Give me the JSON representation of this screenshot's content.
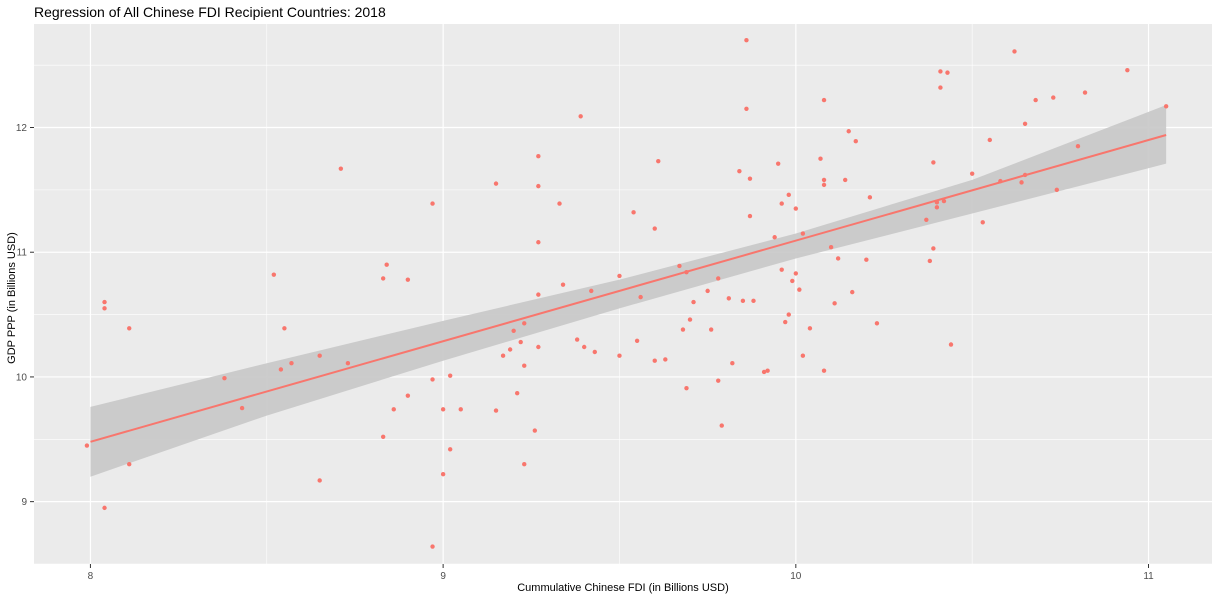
{
  "chart_data": {
    "type": "scatter",
    "title": "Regression of All Chinese FDI Recipient Countries: 2018",
    "xlabel": "Cummulative Chinese FDI (in Billions USD)",
    "ylabel": "GDP PPP (in Billions USD)",
    "xlim": [
      7.84,
      11.18
    ],
    "ylim": [
      8.5,
      12.83
    ],
    "x_ticks": [
      8,
      9,
      10,
      11
    ],
    "y_ticks": [
      9,
      10,
      11,
      12
    ],
    "x_tick_labels": [
      "8",
      "9",
      "10",
      "11"
    ],
    "y_tick_labels": [
      "9",
      "10",
      "11",
      "12"
    ],
    "grid": true,
    "colors": {
      "points": "#f8766d",
      "line": "#f8766d",
      "band": "#c8c8c8",
      "panel": "#ebebeb",
      "grid": "#ffffff"
    },
    "points": [
      {
        "x": 7.99,
        "y": 9.45
      },
      {
        "x": 8.04,
        "y": 10.6
      },
      {
        "x": 8.04,
        "y": 10.55
      },
      {
        "x": 8.04,
        "y": 8.95
      },
      {
        "x": 8.11,
        "y": 10.39
      },
      {
        "x": 8.11,
        "y": 9.3
      },
      {
        "x": 8.38,
        "y": 9.99
      },
      {
        "x": 8.43,
        "y": 9.75
      },
      {
        "x": 8.52,
        "y": 10.82
      },
      {
        "x": 8.54,
        "y": 10.06
      },
      {
        "x": 8.55,
        "y": 10.39
      },
      {
        "x": 8.57,
        "y": 10.11
      },
      {
        "x": 8.65,
        "y": 9.17
      },
      {
        "x": 8.65,
        "y": 10.17
      },
      {
        "x": 8.71,
        "y": 11.67
      },
      {
        "x": 8.73,
        "y": 10.11
      },
      {
        "x": 8.83,
        "y": 10.79
      },
      {
        "x": 8.84,
        "y": 10.9
      },
      {
        "x": 8.83,
        "y": 9.52
      },
      {
        "x": 8.86,
        "y": 9.74
      },
      {
        "x": 8.9,
        "y": 10.78
      },
      {
        "x": 8.9,
        "y": 9.85
      },
      {
        "x": 8.97,
        "y": 11.39
      },
      {
        "x": 8.97,
        "y": 9.98
      },
      {
        "x": 8.97,
        "y": 8.64
      },
      {
        "x": 9.0,
        "y": 9.74
      },
      {
        "x": 9.0,
        "y": 9.22
      },
      {
        "x": 9.02,
        "y": 10.01
      },
      {
        "x": 9.02,
        "y": 9.42
      },
      {
        "x": 9.05,
        "y": 9.74
      },
      {
        "x": 9.15,
        "y": 11.55
      },
      {
        "x": 9.15,
        "y": 9.73
      },
      {
        "x": 9.17,
        "y": 10.17
      },
      {
        "x": 9.19,
        "y": 10.22
      },
      {
        "x": 9.2,
        "y": 10.37
      },
      {
        "x": 9.21,
        "y": 9.87
      },
      {
        "x": 9.22,
        "y": 10.28
      },
      {
        "x": 9.23,
        "y": 10.43
      },
      {
        "x": 9.23,
        "y": 9.3
      },
      {
        "x": 9.23,
        "y": 10.09
      },
      {
        "x": 9.26,
        "y": 9.57
      },
      {
        "x": 9.27,
        "y": 11.77
      },
      {
        "x": 9.27,
        "y": 11.53
      },
      {
        "x": 9.27,
        "y": 11.08
      },
      {
        "x": 9.27,
        "y": 10.66
      },
      {
        "x": 9.27,
        "y": 10.24
      },
      {
        "x": 9.33,
        "y": 11.39
      },
      {
        "x": 9.34,
        "y": 10.74
      },
      {
        "x": 9.38,
        "y": 10.3
      },
      {
        "x": 9.39,
        "y": 12.09
      },
      {
        "x": 9.4,
        "y": 10.24
      },
      {
        "x": 9.42,
        "y": 10.69
      },
      {
        "x": 9.43,
        "y": 10.2
      },
      {
        "x": 9.5,
        "y": 10.81
      },
      {
        "x": 9.5,
        "y": 10.17
      },
      {
        "x": 9.54,
        "y": 11.32
      },
      {
        "x": 9.55,
        "y": 10.29
      },
      {
        "x": 9.56,
        "y": 10.64
      },
      {
        "x": 9.6,
        "y": 11.19
      },
      {
        "x": 9.6,
        "y": 10.13
      },
      {
        "x": 9.61,
        "y": 11.73
      },
      {
        "x": 9.63,
        "y": 10.14
      },
      {
        "x": 9.67,
        "y": 10.89
      },
      {
        "x": 9.68,
        "y": 10.38
      },
      {
        "x": 9.69,
        "y": 10.84
      },
      {
        "x": 9.69,
        "y": 9.91
      },
      {
        "x": 9.7,
        "y": 10.46
      },
      {
        "x": 9.71,
        "y": 10.6
      },
      {
        "x": 9.75,
        "y": 10.69
      },
      {
        "x": 9.76,
        "y": 10.38
      },
      {
        "x": 9.78,
        "y": 10.79
      },
      {
        "x": 9.78,
        "y": 9.97
      },
      {
        "x": 9.79,
        "y": 9.61
      },
      {
        "x": 9.81,
        "y": 10.63
      },
      {
        "x": 9.82,
        "y": 10.11
      },
      {
        "x": 9.84,
        "y": 11.65
      },
      {
        "x": 9.85,
        "y": 10.61
      },
      {
        "x": 9.86,
        "y": 12.7
      },
      {
        "x": 9.86,
        "y": 12.15
      },
      {
        "x": 9.87,
        "y": 11.29
      },
      {
        "x": 9.87,
        "y": 11.59
      },
      {
        "x": 9.88,
        "y": 10.61
      },
      {
        "x": 9.91,
        "y": 10.04
      },
      {
        "x": 9.92,
        "y": 10.05
      },
      {
        "x": 9.94,
        "y": 11.12
      },
      {
        "x": 9.95,
        "y": 11.71
      },
      {
        "x": 9.96,
        "y": 11.39
      },
      {
        "x": 9.96,
        "y": 10.86
      },
      {
        "x": 9.97,
        "y": 10.44
      },
      {
        "x": 9.98,
        "y": 11.46
      },
      {
        "x": 9.98,
        "y": 10.5
      },
      {
        "x": 9.99,
        "y": 10.77
      },
      {
        "x": 10.0,
        "y": 11.35
      },
      {
        "x": 10.0,
        "y": 10.83
      },
      {
        "x": 10.01,
        "y": 10.7
      },
      {
        "x": 10.02,
        "y": 11.15
      },
      {
        "x": 10.02,
        "y": 10.17
      },
      {
        "x": 10.04,
        "y": 10.39
      },
      {
        "x": 10.07,
        "y": 11.75
      },
      {
        "x": 10.08,
        "y": 11.58
      },
      {
        "x": 10.08,
        "y": 11.54
      },
      {
        "x": 10.08,
        "y": 10.05
      },
      {
        "x": 10.08,
        "y": 12.22
      },
      {
        "x": 10.1,
        "y": 11.04
      },
      {
        "x": 10.11,
        "y": 10.59
      },
      {
        "x": 10.12,
        "y": 10.95
      },
      {
        "x": 10.14,
        "y": 11.58
      },
      {
        "x": 10.15,
        "y": 11.97
      },
      {
        "x": 10.16,
        "y": 10.68
      },
      {
        "x": 10.17,
        "y": 11.89
      },
      {
        "x": 10.2,
        "y": 10.94
      },
      {
        "x": 10.21,
        "y": 11.44
      },
      {
        "x": 10.23,
        "y": 10.43
      },
      {
        "x": 10.37,
        "y": 11.26
      },
      {
        "x": 10.38,
        "y": 10.93
      },
      {
        "x": 10.39,
        "y": 11.72
      },
      {
        "x": 10.39,
        "y": 11.03
      },
      {
        "x": 10.4,
        "y": 11.4
      },
      {
        "x": 10.4,
        "y": 11.36
      },
      {
        "x": 10.41,
        "y": 12.32
      },
      {
        "x": 10.41,
        "y": 12.45
      },
      {
        "x": 10.42,
        "y": 11.41
      },
      {
        "x": 10.43,
        "y": 12.44
      },
      {
        "x": 10.44,
        "y": 10.26
      },
      {
        "x": 10.5,
        "y": 11.63
      },
      {
        "x": 10.53,
        "y": 11.24
      },
      {
        "x": 10.55,
        "y": 11.9
      },
      {
        "x": 10.58,
        "y": 11.57
      },
      {
        "x": 10.62,
        "y": 12.61
      },
      {
        "x": 10.64,
        "y": 11.56
      },
      {
        "x": 10.65,
        "y": 12.03
      },
      {
        "x": 10.65,
        "y": 11.62
      },
      {
        "x": 10.68,
        "y": 12.22
      },
      {
        "x": 10.73,
        "y": 12.24
      },
      {
        "x": 10.74,
        "y": 11.5
      },
      {
        "x": 10.8,
        "y": 11.85
      },
      {
        "x": 10.82,
        "y": 12.28
      },
      {
        "x": 10.94,
        "y": 12.46
      },
      {
        "x": 11.05,
        "y": 12.17
      }
    ],
    "regression": {
      "x": [
        8.0,
        11.05
      ],
      "y": [
        9.48,
        11.94
      ]
    },
    "confidence_band": {
      "x": [
        8.0,
        8.5,
        9.0,
        9.5,
        10.0,
        10.5,
        11.05
      ],
      "upper": [
        9.76,
        10.11,
        10.45,
        10.78,
        11.15,
        11.58,
        12.18
      ],
      "lower": [
        9.2,
        9.69,
        10.13,
        10.55,
        10.95,
        11.31,
        11.71
      ]
    }
  }
}
